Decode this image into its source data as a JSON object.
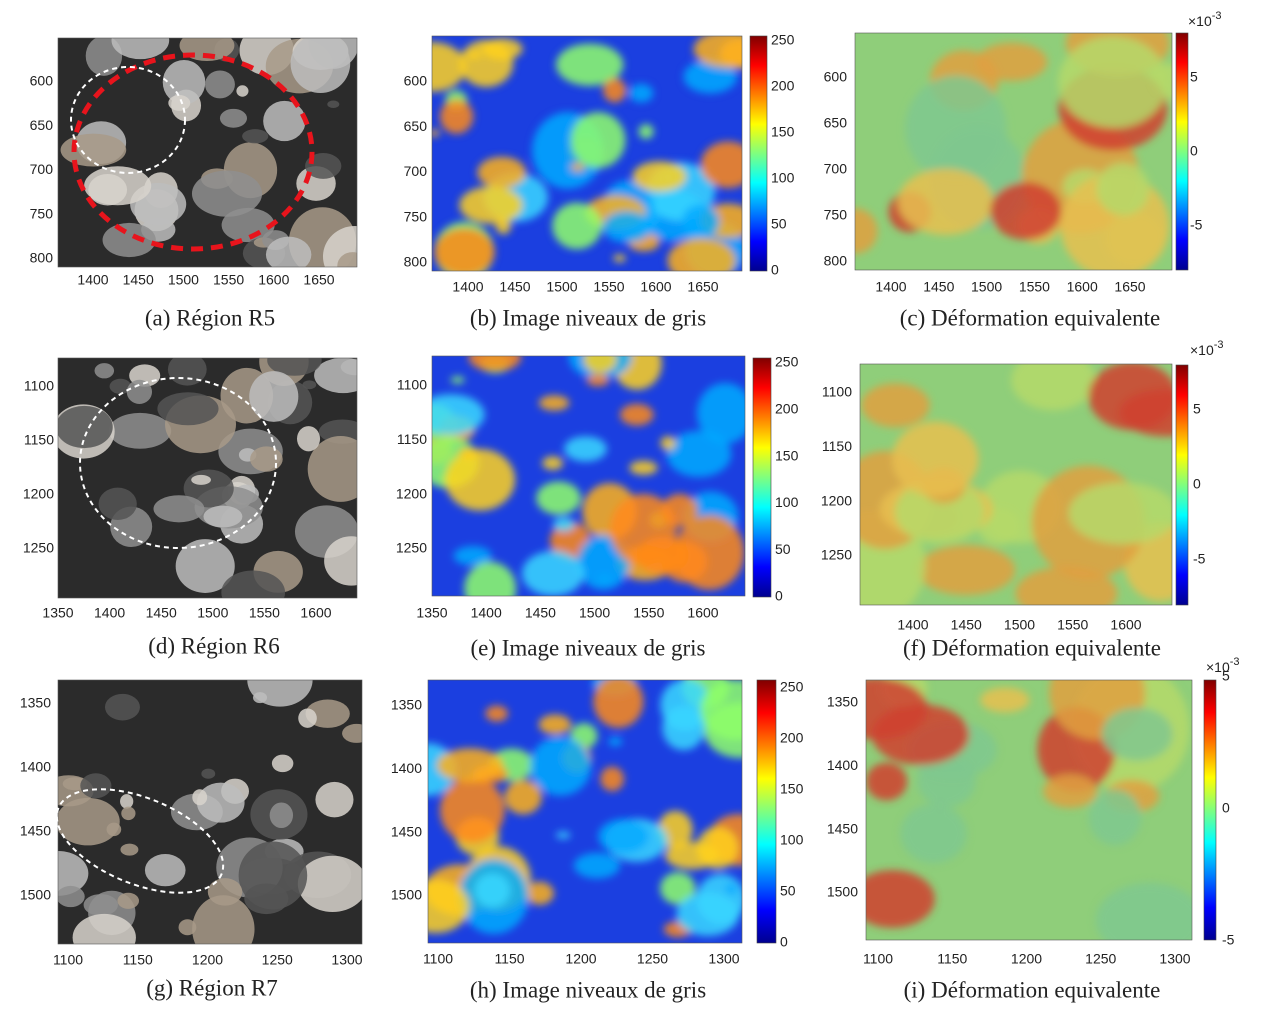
{
  "panels": [
    {
      "caption": "(a) Région R5",
      "xticks": [
        1400,
        1450,
        1500,
        1550,
        1600,
        1650
      ],
      "yticks": [
        600,
        650,
        700,
        750,
        800
      ]
    },
    {
      "caption": "(b) Image niveaux de gris",
      "xticks": [
        1400,
        1450,
        1500,
        1550,
        1600,
        1650
      ],
      "yticks": [
        600,
        650,
        700,
        750,
        800
      ],
      "colorbar_ticks": [
        0,
        50,
        100,
        150,
        200,
        250
      ]
    },
    {
      "caption": "(c) Déformation equivalente",
      "xticks": [
        1400,
        1450,
        1500,
        1550,
        1600,
        1650
      ],
      "yticks": [
        600,
        650,
        700,
        750,
        800
      ],
      "colorbar_ticks": [
        -5,
        0,
        5
      ],
      "colorbar_scale": {
        "base": "×10",
        "exponent": "-3"
      }
    },
    {
      "caption": "(d) Région R6",
      "xticks": [
        1350,
        1400,
        1450,
        1500,
        1550,
        1600
      ],
      "yticks": [
        1100,
        1150,
        1200,
        1250
      ]
    },
    {
      "caption": "(e) Image niveaux de gris",
      "xticks": [
        1350,
        1400,
        1450,
        1500,
        1550,
        1600
      ],
      "yticks": [
        1100,
        1150,
        1200,
        1250
      ],
      "colorbar_ticks": [
        0,
        50,
        100,
        150,
        200,
        250
      ]
    },
    {
      "caption": "(f) Déformation equivalente",
      "xticks": [
        1400,
        1450,
        1500,
        1550,
        1600
      ],
      "yticks": [
        1100,
        1150,
        1200,
        1250
      ],
      "colorbar_ticks": [
        -5,
        0,
        5
      ],
      "colorbar_scale": {
        "base": "×10",
        "exponent": "-3"
      }
    },
    {
      "caption": "(g) Région R7",
      "xticks": [
        1100,
        1150,
        1200,
        1250,
        1300
      ],
      "yticks": [
        1350,
        1400,
        1450,
        1500
      ]
    },
    {
      "caption": "(h) Image niveaux de gris",
      "xticks": [
        1100,
        1150,
        1200,
        1250,
        1300
      ],
      "yticks": [
        1350,
        1400,
        1450,
        1500
      ],
      "colorbar_ticks": [
        0,
        50,
        100,
        150,
        200,
        250
      ]
    },
    {
      "caption": "(i) Déformation equivalente",
      "xticks": [
        1100,
        1150,
        1200,
        1250,
        1300
      ],
      "yticks": [
        1350,
        1400,
        1450,
        1500
      ],
      "colorbar_ticks": [
        -5,
        0,
        5
      ],
      "colorbar_scale": {
        "base": "×10",
        "exponent": "-3"
      }
    }
  ]
}
